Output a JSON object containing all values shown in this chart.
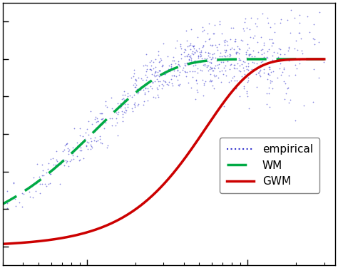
{
  "title": "",
  "background_color": "#ffffff",
  "empirical_color": "#3333cc",
  "wm_color": "#00aa44",
  "gwm_color": "#cc0000",
  "xlim": [
    0.0,
    3.0
  ],
  "ylim": [
    -0.1,
    1.3
  ],
  "sill": 1.0,
  "wm_range": 0.35,
  "wm_nugget": 0.0,
  "gwm_range": 0.55,
  "gwm_nugget": 0.0,
  "legend_labels": [
    "empirical",
    "WM",
    "GWM"
  ],
  "figsize": [
    4.74,
    3.76
  ],
  "dpi": 100
}
